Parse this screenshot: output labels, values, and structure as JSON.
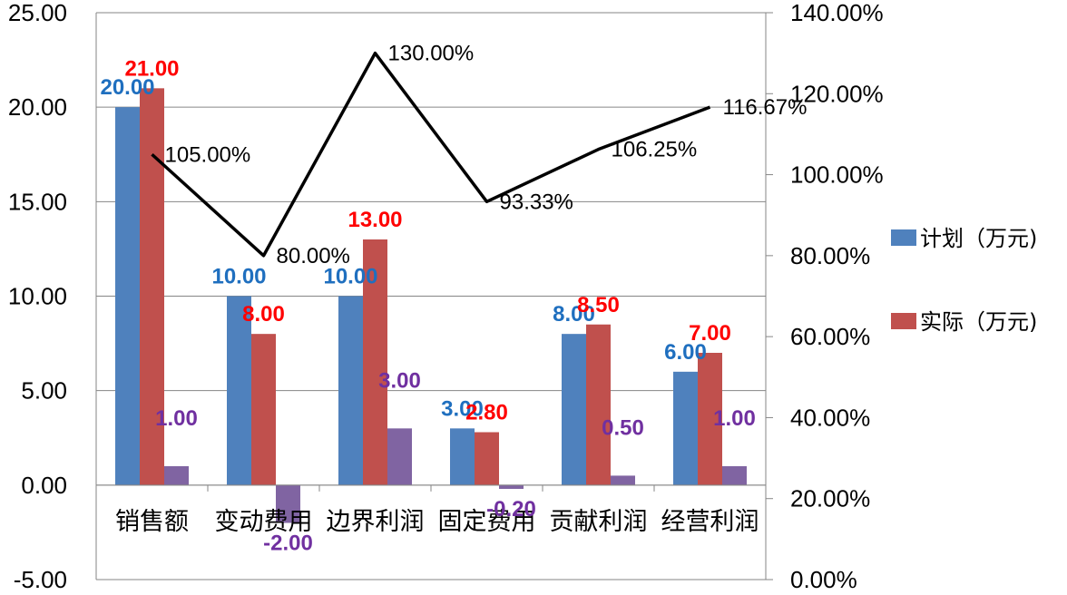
{
  "chart_data": {
    "type": "bar",
    "categories": [
      "销售额",
      "变动费用",
      "边界利润",
      "固定费用",
      "贡献利润",
      "经营利润"
    ],
    "series": [
      {
        "name": "计划（万元)",
        "kind": "bar",
        "axis": "left",
        "color": "#4F81BD",
        "label_color": "#1F6FBF",
        "values": [
          20.0,
          10.0,
          10.0,
          3.0,
          8.0,
          6.0
        ],
        "labels": [
          "20.00",
          "10.00",
          "10.00",
          "3.00",
          "8.00",
          "6.00"
        ]
      },
      {
        "name": "实际（万元)",
        "kind": "bar",
        "axis": "left",
        "color": "#C0504D",
        "label_color": "#FF0000",
        "values": [
          21.0,
          8.0,
          13.0,
          2.8,
          8.5,
          7.0
        ],
        "labels": [
          "21.00",
          "8.00",
          "13.00",
          "2.80",
          "8.50",
          "7.00"
        ]
      },
      {
        "kind": "bar",
        "axis": "left",
        "color": "#8064A2",
        "label_color": "#7030A0",
        "values": [
          1.0,
          -2.0,
          3.0,
          -0.2,
          0.5,
          1.0
        ],
        "labels": [
          "1.00",
          "-2.00",
          "3.00",
          "-0.20",
          "0.50",
          "1.00"
        ]
      },
      {
        "kind": "line",
        "axis": "right",
        "color": "#000000",
        "values": [
          105.0,
          80.0,
          130.0,
          93.33,
          106.25,
          116.67
        ],
        "labels": [
          "105.00%",
          "80.00%",
          "130.00%",
          "93.33%",
          "106.25%",
          "116.67%"
        ]
      }
    ],
    "y_left": {
      "min": -5,
      "max": 25,
      "ticks": [
        -5,
        0,
        5,
        10,
        15,
        20,
        25
      ],
      "tick_labels": [
        "-5.00",
        "0.00",
        "5.00",
        "10.00",
        "15.00",
        "20.00",
        "25.00"
      ]
    },
    "y_right": {
      "min": 0,
      "max": 140,
      "ticks": [
        0,
        20,
        40,
        60,
        80,
        100,
        120,
        140
      ],
      "tick_labels": [
        "0.00%",
        "20.00%",
        "40.00%",
        "60.00%",
        "80.00%",
        "100.00%",
        "120.00%",
        "140.00%"
      ]
    },
    "grid": true,
    "legend": "right",
    "title": "",
    "xlabel": "",
    "ylabel": ""
  }
}
